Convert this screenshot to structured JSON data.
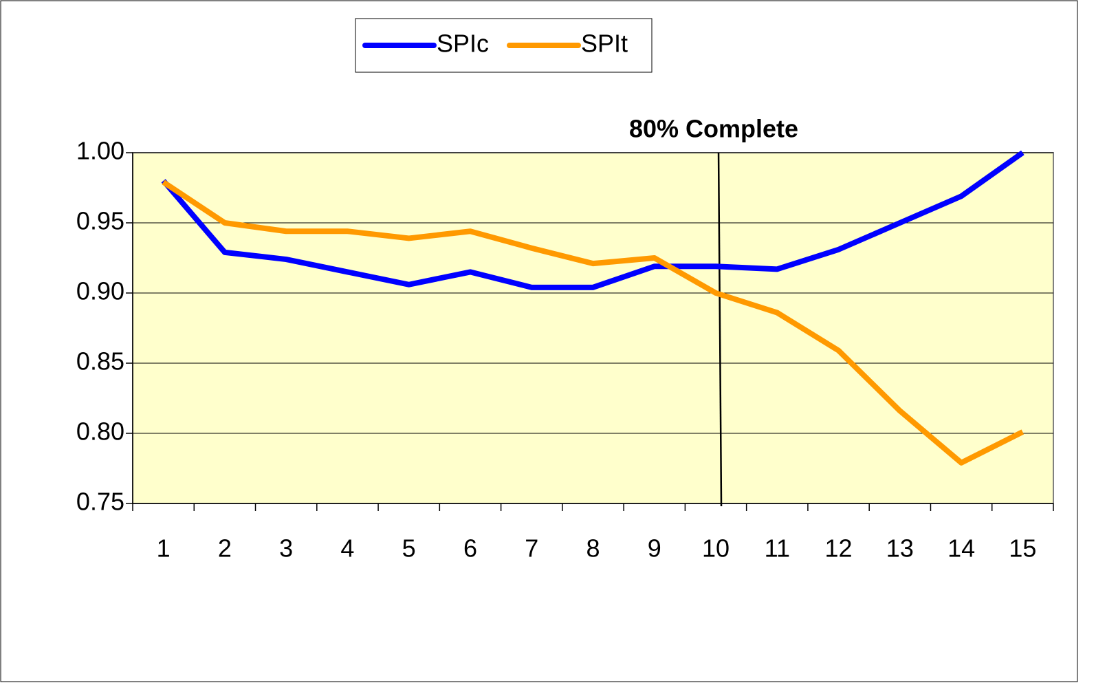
{
  "chart_data": {
    "type": "line",
    "categories": [
      "1",
      "2",
      "3",
      "4",
      "5",
      "6",
      "7",
      "8",
      "9",
      "10",
      "11",
      "12",
      "13",
      "14",
      "15"
    ],
    "series": [
      {
        "name": "SPIc",
        "color": "#0000ff",
        "values": [
          0.98,
          0.929,
          0.924,
          0.915,
          0.906,
          0.915,
          0.904,
          0.904,
          0.919,
          0.919,
          0.917,
          0.931,
          0.95,
          0.969,
          1.0
        ]
      },
      {
        "name": "SPIt",
        "color": "#ff9900",
        "values": [
          0.979,
          0.95,
          0.944,
          0.944,
          0.939,
          0.944,
          0.932,
          0.921,
          0.925,
          0.9,
          0.886,
          0.859,
          0.816,
          0.779,
          0.801
        ]
      }
    ],
    "ylim": [
      0.75,
      1.0
    ],
    "yticks": [
      {
        "value": 0.75,
        "label": "0.75"
      },
      {
        "value": 0.8,
        "label": "0.80"
      },
      {
        "value": 0.85,
        "label": "0.85"
      },
      {
        "value": 0.9,
        "label": "0.90"
      },
      {
        "value": 0.95,
        "label": "0.95"
      },
      {
        "value": 1.0,
        "label": "1.00"
      }
    ],
    "grid": true,
    "legend": "top",
    "annotations": [
      {
        "text": "80% Complete",
        "category": "10"
      }
    ]
  }
}
